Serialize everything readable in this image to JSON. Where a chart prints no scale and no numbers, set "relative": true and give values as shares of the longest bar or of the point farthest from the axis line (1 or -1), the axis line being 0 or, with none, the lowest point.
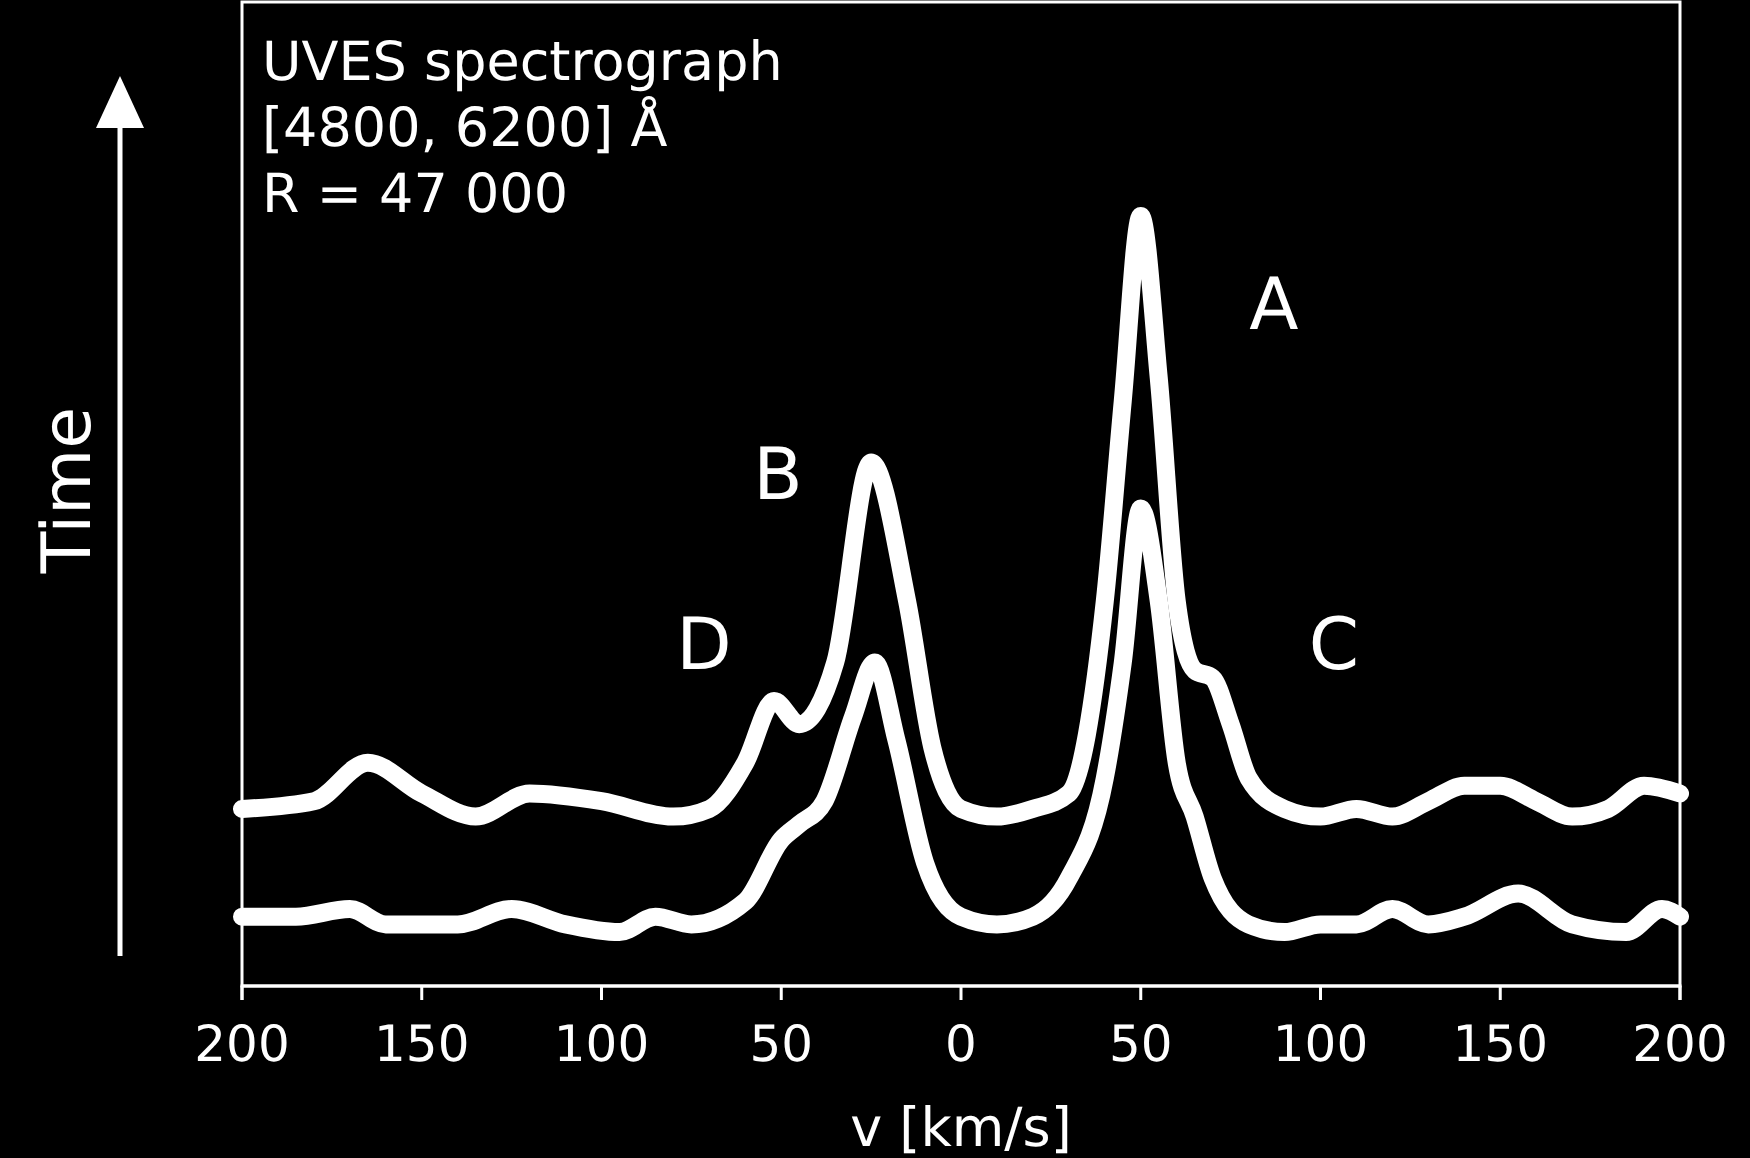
{
  "chart_data": {
    "type": "line",
    "relative": true,
    "xlabel": "v [km/s]",
    "ylabel": "Time",
    "xlim": [
      -200,
      200
    ],
    "xticks": [
      {
        "value": -200,
        "label": "200"
      },
      {
        "value": -150,
        "label": "150"
      },
      {
        "value": -100,
        "label": "100"
      },
      {
        "value": -50,
        "label": "50"
      },
      0,
      50,
      100,
      150,
      200
    ],
    "line_style": "solid",
    "series": [
      {
        "color": "#ffffff",
        "x": [
          -200,
          -180,
          -165,
          -150,
          -135,
          -120,
          -100,
          -80,
          -70,
          -60,
          -52,
          -45,
          -35,
          -25,
          -15,
          -8,
          0,
          10,
          20,
          30,
          40,
          45,
          50,
          55,
          60,
          65,
          70,
          75,
          80,
          90,
          100,
          110,
          120,
          130,
          140,
          150,
          160,
          170,
          180,
          190,
          200
        ],
        "values": [
          0.23,
          0.24,
          0.29,
          0.25,
          0.22,
          0.25,
          0.24,
          0.22,
          0.23,
          0.29,
          0.37,
          0.34,
          0.42,
          0.68,
          0.5,
          0.31,
          0.23,
          0.22,
          0.23,
          0.25,
          0.5,
          0.76,
          1.0,
          0.79,
          0.5,
          0.41,
          0.4,
          0.34,
          0.27,
          0.23,
          0.22,
          0.23,
          0.22,
          0.24,
          0.26,
          0.26,
          0.24,
          0.22,
          0.23,
          0.26,
          0.25
        ]
      },
      {
        "color": "#ffffff",
        "x": [
          -200,
          -185,
          -170,
          -160,
          -140,
          -125,
          -110,
          -95,
          -85,
          -75,
          -60,
          -50,
          -45,
          -38,
          -30,
          -24,
          -18,
          -10,
          0,
          10,
          20,
          30,
          40,
          45,
          50,
          55,
          60,
          65,
          70,
          80,
          90,
          100,
          110,
          120,
          130,
          140,
          155,
          170,
          185,
          195,
          200
        ],
        "values": [
          0.09,
          0.09,
          0.1,
          0.08,
          0.08,
          0.1,
          0.08,
          0.07,
          0.09,
          0.08,
          0.11,
          0.19,
          0.21,
          0.24,
          0.35,
          0.42,
          0.32,
          0.16,
          0.09,
          0.08,
          0.09,
          0.14,
          0.27,
          0.42,
          0.62,
          0.5,
          0.29,
          0.22,
          0.14,
          0.08,
          0.07,
          0.08,
          0.08,
          0.1,
          0.08,
          0.09,
          0.12,
          0.08,
          0.07,
          0.1,
          0.09
        ]
      }
    ],
    "annotations": [
      "UVES spectrograph",
      "[4800, 6200] Å",
      "R = 47 000",
      "A",
      "B",
      "C",
      "D"
    ]
  }
}
